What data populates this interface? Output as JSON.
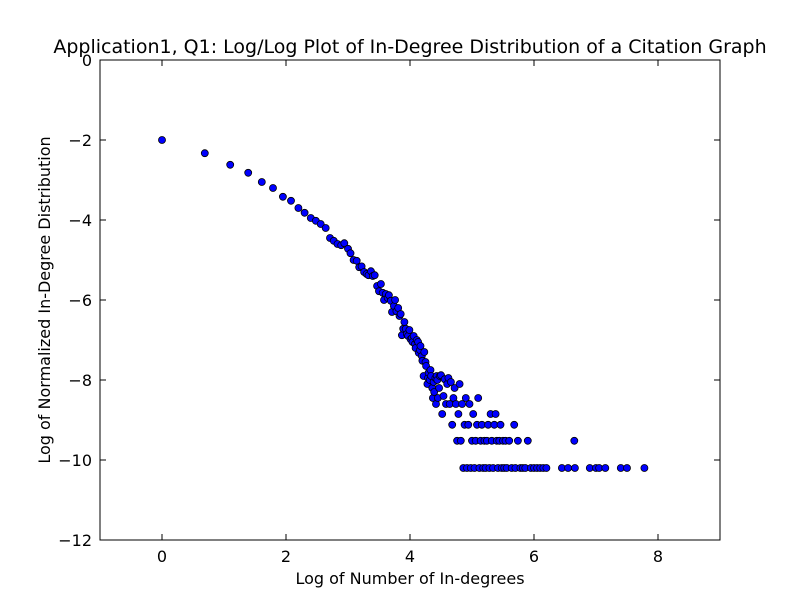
{
  "chart_data": {
    "type": "scatter",
    "title": "Application1, Q1: Log/Log Plot of In-Degree Distribution of a Citation Graph",
    "xlabel": "Log of Number of In-degrees",
    "ylabel": "Log of Normalized In-Degree Distribution",
    "xlim": [
      -1,
      9
    ],
    "ylim": [
      -12,
      0
    ],
    "x_ticks": [
      "0",
      "2",
      "4",
      "6",
      "8"
    ],
    "y_ticks": [
      "0",
      "−2",
      "−4",
      "−6",
      "−8",
      "−10",
      "−12"
    ],
    "grid": false,
    "legend": "none",
    "marker_color": "#0000ff",
    "marker_edge": "#000000",
    "points": [
      [
        0.0,
        -2.0
      ],
      [
        0.69,
        -2.33
      ],
      [
        1.1,
        -2.62
      ],
      [
        1.39,
        -2.82
      ],
      [
        1.61,
        -3.05
      ],
      [
        1.79,
        -3.2
      ],
      [
        1.95,
        -3.42
      ],
      [
        2.08,
        -3.52
      ],
      [
        2.2,
        -3.7
      ],
      [
        2.3,
        -3.82
      ],
      [
        2.4,
        -3.95
      ],
      [
        2.48,
        -4.02
      ],
      [
        2.56,
        -4.1
      ],
      [
        2.64,
        -4.2
      ],
      [
        2.71,
        -4.45
      ],
      [
        2.77,
        -4.52
      ],
      [
        2.83,
        -4.6
      ],
      [
        2.89,
        -4.63
      ],
      [
        2.94,
        -4.58
      ],
      [
        3.0,
        -4.72
      ],
      [
        3.04,
        -4.83
      ],
      [
        3.09,
        -5.0
      ],
      [
        3.14,
        -5.02
      ],
      [
        3.18,
        -5.18
      ],
      [
        3.22,
        -5.16
      ],
      [
        3.26,
        -5.3
      ],
      [
        3.3,
        -5.35
      ],
      [
        3.33,
        -5.38
      ],
      [
        3.37,
        -5.28
      ],
      [
        3.4,
        -5.4
      ],
      [
        3.43,
        -5.38
      ],
      [
        3.47,
        -5.65
      ],
      [
        3.5,
        -5.78
      ],
      [
        3.53,
        -5.6
      ],
      [
        3.56,
        -5.82
      ],
      [
        3.58,
        -6.0
      ],
      [
        3.61,
        -5.85
      ],
      [
        3.64,
        -5.95
      ],
      [
        3.66,
        -5.88
      ],
      [
        3.69,
        -6.02
      ],
      [
        3.71,
        -6.3
      ],
      [
        3.74,
        -6.15
      ],
      [
        3.76,
        -6.0
      ],
      [
        3.78,
        -6.28
      ],
      [
        3.81,
        -6.2
      ],
      [
        3.83,
        -6.4
      ],
      [
        3.85,
        -6.35
      ],
      [
        3.87,
        -6.88
      ],
      [
        3.89,
        -6.72
      ],
      [
        3.91,
        -6.55
      ],
      [
        3.93,
        -6.72
      ],
      [
        3.95,
        -6.85
      ],
      [
        3.97,
        -6.9
      ],
      [
        3.99,
        -6.75
      ],
      [
        4.01,
        -6.98
      ],
      [
        4.03,
        -6.95
      ],
      [
        4.04,
        -7.05
      ],
      [
        4.06,
        -6.9
      ],
      [
        4.08,
        -7.1
      ],
      [
        4.09,
        -7.2
      ],
      [
        4.11,
        -7.0
      ],
      [
        4.13,
        -7.05
      ],
      [
        4.14,
        -7.32
      ],
      [
        4.16,
        -7.25
      ],
      [
        4.17,
        -7.15
      ],
      [
        4.19,
        -7.4
      ],
      [
        4.2,
        -7.52
      ],
      [
        4.22,
        -7.9
      ],
      [
        4.23,
        -7.3
      ],
      [
        4.25,
        -7.55
      ],
      [
        4.26,
        -7.65
      ],
      [
        4.28,
        -8.1
      ],
      [
        4.29,
        -7.95
      ],
      [
        4.3,
        -7.82
      ],
      [
        4.32,
        -8.0
      ],
      [
        4.33,
        -7.75
      ],
      [
        4.34,
        -7.9
      ],
      [
        4.36,
        -8.2
      ],
      [
        4.37,
        -8.45
      ],
      [
        4.38,
        -8.05
      ],
      [
        4.39,
        -8.3
      ],
      [
        4.41,
        -7.95
      ],
      [
        4.42,
        -8.6
      ],
      [
        4.43,
        -7.9
      ],
      [
        4.44,
        -8.0
      ],
      [
        4.45,
        -8.45
      ],
      [
        4.47,
        -8.2
      ],
      [
        4.48,
        -7.9
      ],
      [
        4.5,
        -7.88
      ],
      [
        4.52,
        -8.85
      ],
      [
        4.54,
        -8.4
      ],
      [
        4.56,
        -7.98
      ],
      [
        4.58,
        -8.6
      ],
      [
        4.6,
        -8.1
      ],
      [
        4.62,
        -7.95
      ],
      [
        4.64,
        -8.6
      ],
      [
        4.66,
        -8.05
      ],
      [
        4.68,
        -9.12
      ],
      [
        4.7,
        -8.45
      ],
      [
        4.72,
        -8.2
      ],
      [
        4.74,
        -8.6
      ],
      [
        4.76,
        -9.52
      ],
      [
        4.78,
        -8.85
      ],
      [
        4.8,
        -8.1
      ],
      [
        4.82,
        -9.52
      ],
      [
        4.84,
        -8.6
      ],
      [
        4.86,
        -10.2
      ],
      [
        4.88,
        -9.12
      ],
      [
        4.9,
        -8.45
      ],
      [
        4.92,
        -10.2
      ],
      [
        4.94,
        -9.12
      ],
      [
        4.96,
        -8.6
      ],
      [
        4.98,
        -10.2
      ],
      [
        5.0,
        -9.52
      ],
      [
        5.02,
        -8.85
      ],
      [
        5.04,
        -10.2
      ],
      [
        5.06,
        -9.52
      ],
      [
        5.08,
        -9.12
      ],
      [
        5.1,
        -8.45
      ],
      [
        5.12,
        -10.2
      ],
      [
        5.14,
        -9.52
      ],
      [
        5.16,
        -9.12
      ],
      [
        5.18,
        -10.2
      ],
      [
        5.2,
        -9.52
      ],
      [
        5.22,
        -10.2
      ],
      [
        5.24,
        -9.52
      ],
      [
        5.26,
        -9.12
      ],
      [
        5.28,
        -10.2
      ],
      [
        5.3,
        -8.85
      ],
      [
        5.32,
        -9.52
      ],
      [
        5.34,
        -10.2
      ],
      [
        5.36,
        -9.12
      ],
      [
        5.38,
        -8.85
      ],
      [
        5.4,
        -9.52
      ],
      [
        5.42,
        -10.2
      ],
      [
        5.44,
        -9.52
      ],
      [
        5.46,
        -9.12
      ],
      [
        5.48,
        -10.2
      ],
      [
        5.5,
        -9.52
      ],
      [
        5.52,
        -10.2
      ],
      [
        5.54,
        -9.52
      ],
      [
        5.56,
        -10.2
      ],
      [
        5.6,
        -9.52
      ],
      [
        5.64,
        -10.2
      ],
      [
        5.68,
        -9.12
      ],
      [
        5.7,
        -10.2
      ],
      [
        5.74,
        -9.52
      ],
      [
        5.78,
        -10.2
      ],
      [
        5.82,
        -10.2
      ],
      [
        5.86,
        -10.2
      ],
      [
        5.9,
        -9.52
      ],
      [
        5.95,
        -10.2
      ],
      [
        6.0,
        -10.2
      ],
      [
        6.05,
        -10.2
      ],
      [
        6.1,
        -10.2
      ],
      [
        6.15,
        -10.2
      ],
      [
        6.2,
        -10.2
      ],
      [
        6.45,
        -10.2
      ],
      [
        6.55,
        -10.2
      ],
      [
        6.65,
        -9.52
      ],
      [
        6.66,
        -10.2
      ],
      [
        6.9,
        -10.2
      ],
      [
        7.0,
        -10.2
      ],
      [
        7.05,
        -10.2
      ],
      [
        7.15,
        -10.2
      ],
      [
        7.4,
        -10.2
      ],
      [
        7.5,
        -10.2
      ],
      [
        7.78,
        -10.2
      ]
    ]
  }
}
